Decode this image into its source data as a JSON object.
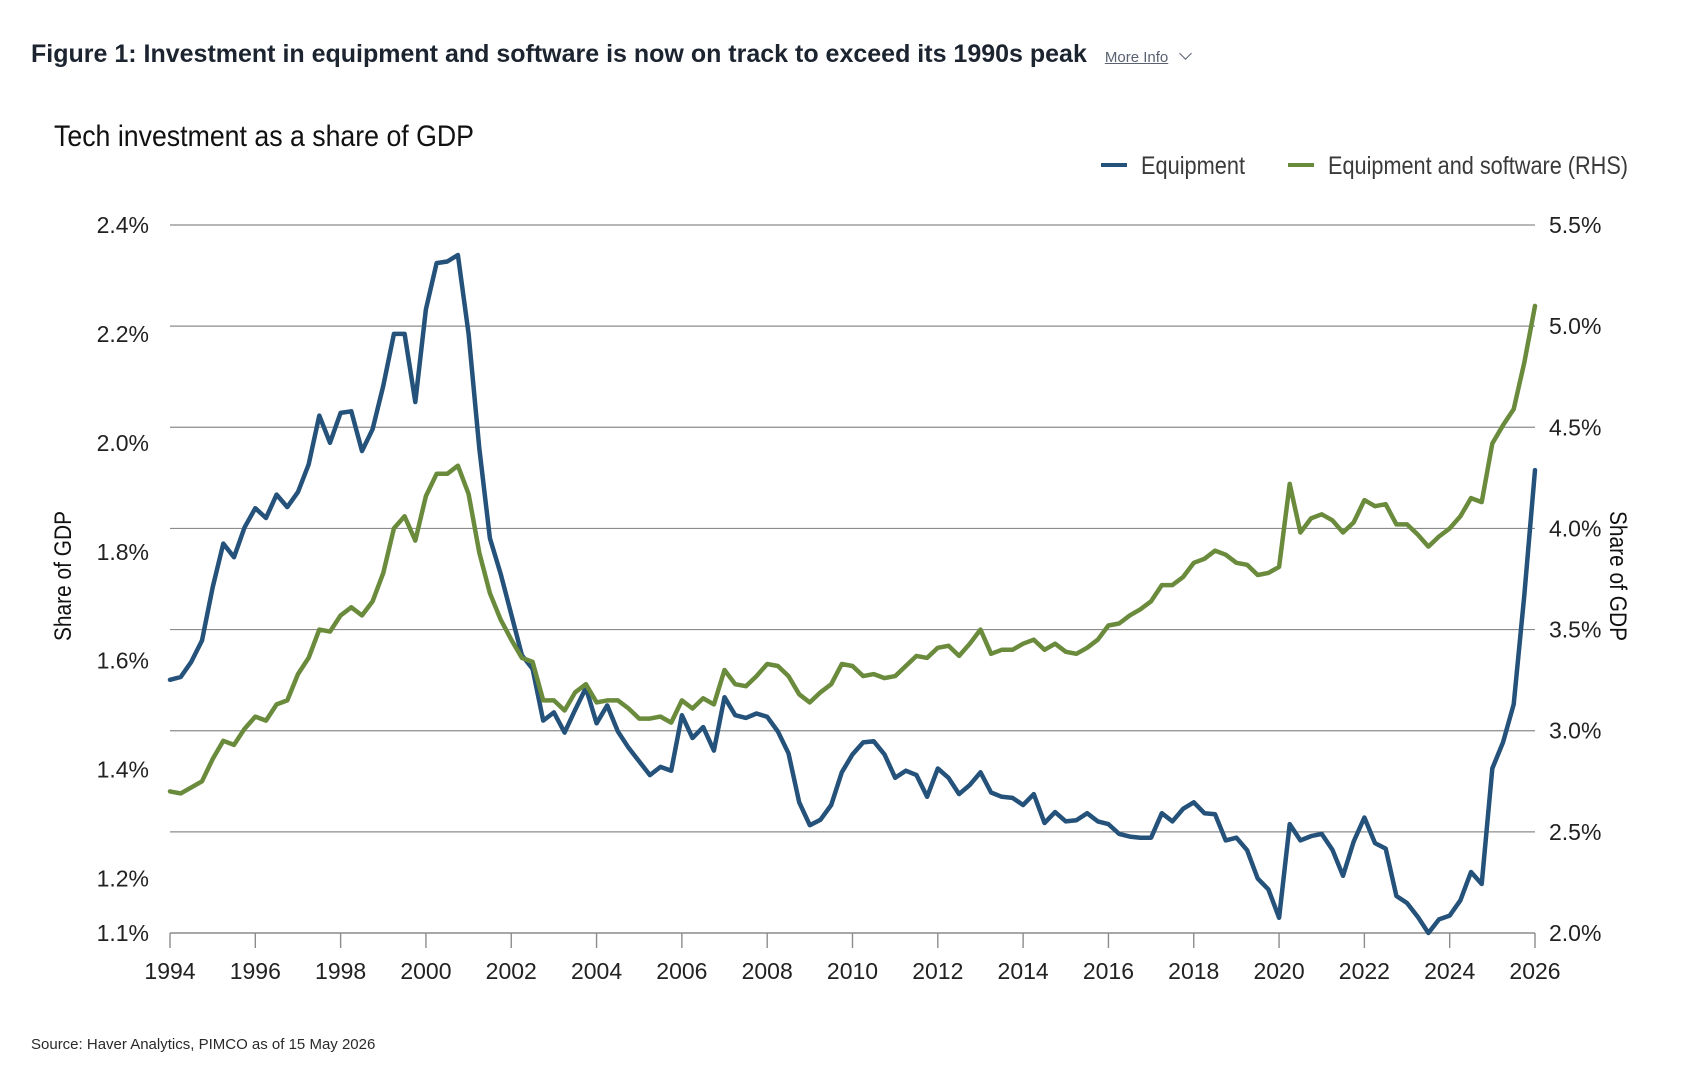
{
  "figure": {
    "title": "Figure 1: Investment in equipment and software is now on track to exceed its 1990s peak",
    "more_info_label": "More Info",
    "source": "Source: Haver Analytics, PIMCO as of 15 May 2026"
  },
  "chart_data": {
    "type": "line",
    "title": "Tech investment as a share of GDP",
    "ylabel": "Share of GDP",
    "y2label": "Share of GDP",
    "legend_position": "top-right",
    "grid": true,
    "xlim": [
      1994,
      2026
    ],
    "ylim": [
      1.1,
      2.4
    ],
    "y2lim": [
      2.0,
      5.5
    ],
    "x_ticks": [
      "1994",
      "1996",
      "1998",
      "2000",
      "2002",
      "2004",
      "2006",
      "2008",
      "2010",
      "2012",
      "2014",
      "2016",
      "2018",
      "2020",
      "2022",
      "2024",
      "2026"
    ],
    "y_ticks": [
      "2.4%",
      "2.2%",
      "2.0%",
      "1.8%",
      "1.6%",
      "1.4%",
      "1.2%",
      "1.1%"
    ],
    "y2_ticks": [
      "5.5%",
      "5.0%",
      "4.5%",
      "4.0%",
      "3.5%",
      "3.0%",
      "2.5%",
      "2.0%"
    ],
    "colors": {
      "equipment": "#24527a",
      "equipment_and_software": "#6a8a3c"
    },
    "series": [
      {
        "name": "Equipment",
        "axis": "left",
        "points": [
          [
            1994.0,
            1.565
          ],
          [
            1994.25,
            1.57
          ],
          [
            1994.5,
            1.598
          ],
          [
            1994.75,
            1.637
          ],
          [
            1995.0,
            1.735
          ],
          [
            1995.25,
            1.815
          ],
          [
            1995.5,
            1.79
          ],
          [
            1995.75,
            1.845
          ],
          [
            1996.0,
            1.88
          ],
          [
            1996.25,
            1.862
          ],
          [
            1996.5,
            1.905
          ],
          [
            1996.75,
            1.882
          ],
          [
            1997.0,
            1.91
          ],
          [
            1997.25,
            1.96
          ],
          [
            1997.5,
            2.05
          ],
          [
            1997.75,
            2.0
          ],
          [
            1998.0,
            2.055
          ],
          [
            1998.25,
            2.058
          ],
          [
            1998.5,
            1.985
          ],
          [
            1998.75,
            2.025
          ],
          [
            1999.0,
            2.105
          ],
          [
            1999.25,
            2.2
          ],
          [
            1999.5,
            2.2
          ],
          [
            1999.75,
            2.075
          ],
          [
            2000.0,
            2.245
          ],
          [
            2000.25,
            2.33
          ],
          [
            2000.5,
            2.333
          ],
          [
            2000.75,
            2.345
          ],
          [
            2001.0,
            2.2
          ],
          [
            2001.25,
            1.99
          ],
          [
            2001.5,
            1.825
          ],
          [
            2001.75,
            1.76
          ],
          [
            2002.0,
            1.685
          ],
          [
            2002.25,
            1.61
          ],
          [
            2002.5,
            1.585
          ],
          [
            2002.75,
            1.49
          ],
          [
            2003.0,
            1.505
          ],
          [
            2003.25,
            1.468
          ],
          [
            2003.5,
            1.51
          ],
          [
            2003.75,
            1.55
          ],
          [
            2004.0,
            1.485
          ],
          [
            2004.25,
            1.518
          ],
          [
            2004.5,
            1.47
          ],
          [
            2004.75,
            1.44
          ],
          [
            2005.0,
            1.415
          ],
          [
            2005.25,
            1.39
          ],
          [
            2005.5,
            1.405
          ],
          [
            2005.75,
            1.398
          ],
          [
            2006.0,
            1.5
          ],
          [
            2006.25,
            1.458
          ],
          [
            2006.5,
            1.478
          ],
          [
            2006.75,
            1.435
          ],
          [
            2007.0,
            1.533
          ],
          [
            2007.25,
            1.5
          ],
          [
            2007.5,
            1.495
          ],
          [
            2007.75,
            1.503
          ],
          [
            2008.0,
            1.497
          ],
          [
            2008.25,
            1.47
          ],
          [
            2008.5,
            1.43
          ],
          [
            2008.75,
            1.34
          ],
          [
            2009.0,
            1.298
          ],
          [
            2009.25,
            1.308
          ],
          [
            2009.5,
            1.335
          ],
          [
            2009.75,
            1.395
          ],
          [
            2010.0,
            1.428
          ],
          [
            2010.25,
            1.45
          ],
          [
            2010.5,
            1.452
          ],
          [
            2010.75,
            1.428
          ],
          [
            2011.0,
            1.385
          ],
          [
            2011.25,
            1.398
          ],
          [
            2011.5,
            1.39
          ],
          [
            2011.75,
            1.35
          ],
          [
            2012.0,
            1.402
          ],
          [
            2012.25,
            1.385
          ],
          [
            2012.5,
            1.355
          ],
          [
            2012.75,
            1.372
          ],
          [
            2013.0,
            1.395
          ],
          [
            2013.25,
            1.358
          ],
          [
            2013.5,
            1.35
          ],
          [
            2013.75,
            1.348
          ],
          [
            2014.0,
            1.335
          ],
          [
            2014.25,
            1.355
          ],
          [
            2014.5,
            1.302
          ],
          [
            2014.75,
            1.322
          ],
          [
            2015.0,
            1.305
          ],
          [
            2015.25,
            1.307
          ],
          [
            2015.5,
            1.32
          ],
          [
            2015.75,
            1.305
          ],
          [
            2016.0,
            1.3
          ],
          [
            2016.25,
            1.282
          ],
          [
            2016.5,
            1.277
          ],
          [
            2016.75,
            1.275
          ],
          [
            2017.0,
            1.275
          ],
          [
            2017.25,
            1.32
          ],
          [
            2017.5,
            1.305
          ],
          [
            2017.75,
            1.328
          ],
          [
            2018.0,
            1.34
          ],
          [
            2018.25,
            1.32
          ],
          [
            2018.5,
            1.318
          ],
          [
            2018.75,
            1.27
          ],
          [
            2019.0,
            1.275
          ],
          [
            2019.25,
            1.252
          ],
          [
            2019.5,
            1.2
          ],
          [
            2019.75,
            1.18
          ],
          [
            2020.0,
            1.128
          ],
          [
            2020.25,
            1.3
          ],
          [
            2020.5,
            1.27
          ],
          [
            2020.75,
            1.278
          ],
          [
            2021.0,
            1.282
          ],
          [
            2021.25,
            1.253
          ],
          [
            2021.5,
            1.205
          ],
          [
            2021.75,
            1.268
          ],
          [
            2022.0,
            1.312
          ],
          [
            2022.25,
            1.265
          ],
          [
            2022.5,
            1.255
          ],
          [
            2022.75,
            1.168
          ],
          [
            2023.0,
            1.155
          ],
          [
            2023.25,
            1.13
          ],
          [
            2023.5,
            1.1
          ],
          [
            2023.75,
            1.125
          ],
          [
            2024.0,
            1.132
          ],
          [
            2024.25,
            1.16
          ],
          [
            2024.5,
            1.212
          ],
          [
            2024.75,
            1.19
          ],
          [
            2025.0,
            1.402
          ],
          [
            2025.25,
            1.45
          ],
          [
            2025.5,
            1.52
          ],
          [
            2025.75,
            1.72
          ],
          [
            2026.0,
            1.95
          ]
        ]
      },
      {
        "name": "Equipment and software (RHS)",
        "axis": "right",
        "points": [
          [
            1994.0,
            2.7
          ],
          [
            1994.25,
            2.69
          ],
          [
            1994.5,
            2.72
          ],
          [
            1994.75,
            2.75
          ],
          [
            1995.0,
            2.86
          ],
          [
            1995.25,
            2.95
          ],
          [
            1995.5,
            2.93
          ],
          [
            1995.75,
            3.01
          ],
          [
            1996.0,
            3.07
          ],
          [
            1996.25,
            3.05
          ],
          [
            1996.5,
            3.13
          ],
          [
            1996.75,
            3.15
          ],
          [
            1997.0,
            3.28
          ],
          [
            1997.25,
            3.36
          ],
          [
            1997.5,
            3.5
          ],
          [
            1997.75,
            3.49
          ],
          [
            1998.0,
            3.57
          ],
          [
            1998.25,
            3.61
          ],
          [
            1998.5,
            3.57
          ],
          [
            1998.75,
            3.64
          ],
          [
            1999.0,
            3.78
          ],
          [
            1999.25,
            4.0
          ],
          [
            1999.5,
            4.06
          ],
          [
            1999.75,
            3.94
          ],
          [
            2000.0,
            4.16
          ],
          [
            2000.25,
            4.27
          ],
          [
            2000.5,
            4.27
          ],
          [
            2000.75,
            4.31
          ],
          [
            2001.0,
            4.17
          ],
          [
            2001.25,
            3.88
          ],
          [
            2001.5,
            3.68
          ],
          [
            2001.75,
            3.55
          ],
          [
            2002.0,
            3.45
          ],
          [
            2002.25,
            3.36
          ],
          [
            2002.5,
            3.34
          ],
          [
            2002.75,
            3.15
          ],
          [
            2003.0,
            3.15
          ],
          [
            2003.25,
            3.1
          ],
          [
            2003.5,
            3.19
          ],
          [
            2003.75,
            3.23
          ],
          [
            2004.0,
            3.14
          ],
          [
            2004.25,
            3.15
          ],
          [
            2004.5,
            3.15
          ],
          [
            2004.75,
            3.11
          ],
          [
            2005.0,
            3.06
          ],
          [
            2005.25,
            3.06
          ],
          [
            2005.5,
            3.07
          ],
          [
            2005.75,
            3.04
          ],
          [
            2006.0,
            3.15
          ],
          [
            2006.25,
            3.11
          ],
          [
            2006.5,
            3.16
          ],
          [
            2006.75,
            3.13
          ],
          [
            2007.0,
            3.3
          ],
          [
            2007.25,
            3.23
          ],
          [
            2007.5,
            3.22
          ],
          [
            2007.75,
            3.27
          ],
          [
            2008.0,
            3.33
          ],
          [
            2008.25,
            3.32
          ],
          [
            2008.5,
            3.27
          ],
          [
            2008.75,
            3.18
          ],
          [
            2009.0,
            3.14
          ],
          [
            2009.25,
            3.19
          ],
          [
            2009.5,
            3.23
          ],
          [
            2009.75,
            3.33
          ],
          [
            2010.0,
            3.32
          ],
          [
            2010.25,
            3.27
          ],
          [
            2010.5,
            3.28
          ],
          [
            2010.75,
            3.26
          ],
          [
            2011.0,
            3.27
          ],
          [
            2011.25,
            3.32
          ],
          [
            2011.5,
            3.37
          ],
          [
            2011.75,
            3.36
          ],
          [
            2012.0,
            3.41
          ],
          [
            2012.25,
            3.42
          ],
          [
            2012.5,
            3.37
          ],
          [
            2012.75,
            3.43
          ],
          [
            2013.0,
            3.5
          ],
          [
            2013.25,
            3.38
          ],
          [
            2013.5,
            3.4
          ],
          [
            2013.75,
            3.4
          ],
          [
            2014.0,
            3.43
          ],
          [
            2014.25,
            3.45
          ],
          [
            2014.5,
            3.4
          ],
          [
            2014.75,
            3.43
          ],
          [
            2015.0,
            3.39
          ],
          [
            2015.25,
            3.38
          ],
          [
            2015.5,
            3.41
          ],
          [
            2015.75,
            3.45
          ],
          [
            2016.0,
            3.52
          ],
          [
            2016.25,
            3.53
          ],
          [
            2016.5,
            3.57
          ],
          [
            2016.75,
            3.6
          ],
          [
            2017.0,
            3.64
          ],
          [
            2017.25,
            3.72
          ],
          [
            2017.5,
            3.72
          ],
          [
            2017.75,
            3.76
          ],
          [
            2018.0,
            3.83
          ],
          [
            2018.25,
            3.85
          ],
          [
            2018.5,
            3.89
          ],
          [
            2018.75,
            3.87
          ],
          [
            2019.0,
            3.83
          ],
          [
            2019.25,
            3.82
          ],
          [
            2019.5,
            3.77
          ],
          [
            2019.75,
            3.78
          ],
          [
            2020.0,
            3.81
          ],
          [
            2020.25,
            4.22
          ],
          [
            2020.5,
            3.98
          ],
          [
            2020.75,
            4.05
          ],
          [
            2021.0,
            4.07
          ],
          [
            2021.25,
            4.04
          ],
          [
            2021.5,
            3.98
          ],
          [
            2021.75,
            4.03
          ],
          [
            2022.0,
            4.14
          ],
          [
            2022.25,
            4.11
          ],
          [
            2022.5,
            4.12
          ],
          [
            2022.75,
            4.02
          ],
          [
            2023.0,
            4.02
          ],
          [
            2023.25,
            3.97
          ],
          [
            2023.5,
            3.91
          ],
          [
            2023.75,
            3.96
          ],
          [
            2024.0,
            4.0
          ],
          [
            2024.25,
            4.06
          ],
          [
            2024.5,
            4.15
          ],
          [
            2024.75,
            4.13
          ],
          [
            2025.0,
            4.42
          ],
          [
            2025.25,
            4.51
          ],
          [
            2025.5,
            4.59
          ],
          [
            2025.75,
            4.82
          ],
          [
            2026.0,
            5.1
          ]
        ]
      }
    ]
  }
}
